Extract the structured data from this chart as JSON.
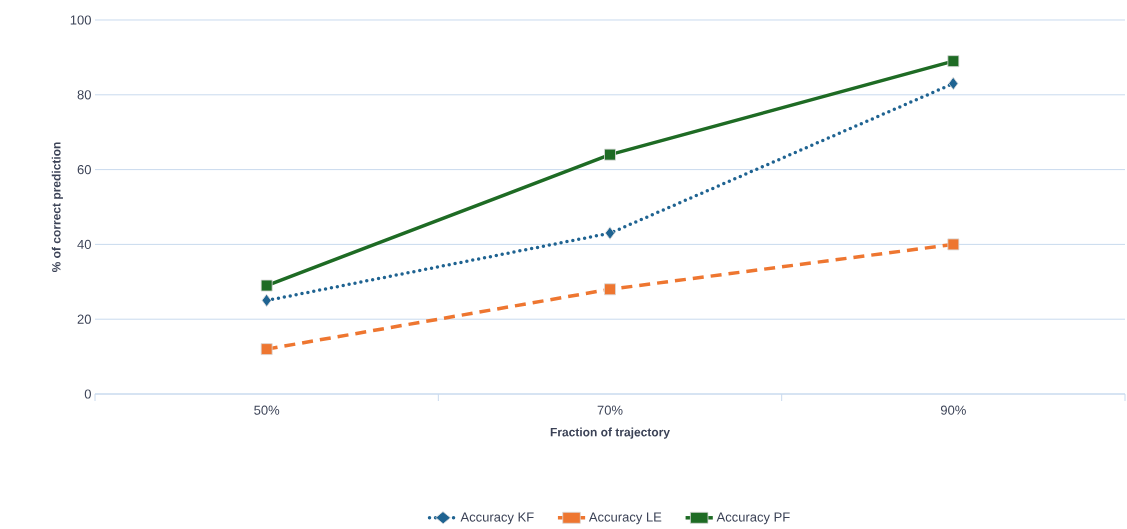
{
  "chart_data": {
    "type": "line",
    "xlabel": "Fraction of trajectory",
    "ylabel": "% of correct prediction",
    "categories": [
      "50%",
      "70%",
      "90%"
    ],
    "series": [
      {
        "name": "Accuracy KF",
        "color": "#1f6391",
        "values": [
          25,
          43,
          83
        ],
        "marker": "diamond",
        "line_style": "dotted"
      },
      {
        "name": "Accuracy LE",
        "color": "#ee7630",
        "values": [
          12,
          28,
          40
        ],
        "marker": "square",
        "line_style": "dashed"
      },
      {
        "name": "Accuracy PF",
        "color": "#1e6b24",
        "values": [
          29,
          64,
          89
        ],
        "marker": "square",
        "line_style": "solid"
      }
    ],
    "ylim": [
      0,
      100
    ],
    "yticks": [
      0,
      20,
      40,
      60,
      80,
      100
    ],
    "grid": "y",
    "legend": "bottom"
  }
}
